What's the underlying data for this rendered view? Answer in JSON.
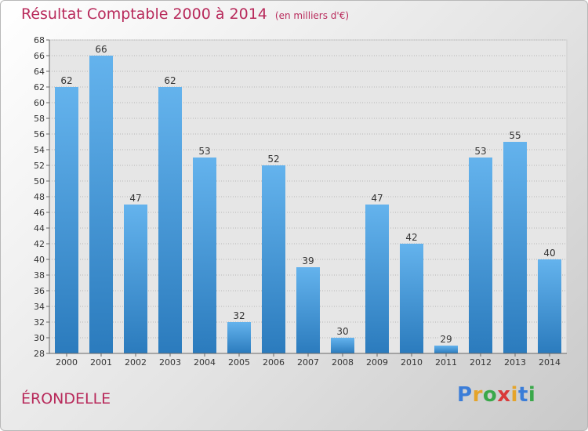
{
  "header": {
    "title": "Résultat Comptable 2000 à 2014",
    "subtitle": "(en milliers d'€)"
  },
  "footer": {
    "place": "ÉRONDELLE",
    "logo_letters": [
      "P",
      "r",
      "o",
      "x",
      "i",
      "t",
      "i"
    ],
    "logo_colors": [
      "#3b7dd8",
      "#e5a42a",
      "#3aa84a",
      "#d93a3a",
      "#e5a42a",
      "#3b7dd8",
      "#3aa84a"
    ]
  },
  "chart_data": {
    "type": "bar",
    "categories": [
      "2000",
      "2001",
      "2002",
      "2003",
      "2004",
      "2005",
      "2006",
      "2007",
      "2008",
      "2009",
      "2010",
      "2011",
      "2012",
      "2013",
      "2014"
    ],
    "values": [
      62,
      66,
      47,
      62,
      53,
      32,
      52,
      39,
      30,
      47,
      42,
      29,
      53,
      55,
      40
    ],
    "title": "Résultat Comptable 2000 à 2014",
    "subtitle": "(en milliers d'€)",
    "ylim": [
      28,
      68
    ],
    "ytick_step": 2,
    "grid": "horizontal dotted",
    "bar_color_top": "#64b3ed",
    "bar_color_bottom": "#2b7bbd"
  }
}
